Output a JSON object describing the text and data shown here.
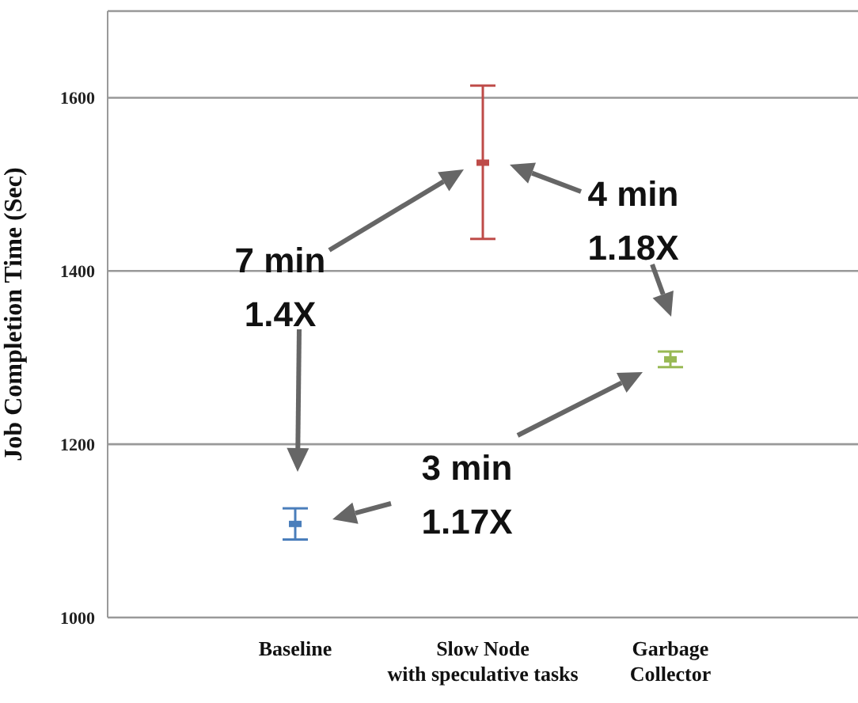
{
  "chart_data": {
    "type": "scatter",
    "ylabel": "Job Completion Time (Sec)",
    "categories": [
      "Baseline",
      "Slow Node\nwith speculative tasks",
      "Garbage\nCollector"
    ],
    "values": [
      1108,
      1525,
      1298
    ],
    "errors": [
      [
        1090,
        1126
      ],
      [
        1437,
        1614
      ],
      [
        1289,
        1307
      ]
    ],
    "colors": [
      "#4a7ebb",
      "#be4b48",
      "#98b954"
    ],
    "ylim": [
      1000,
      1700
    ],
    "yticks": [
      1000,
      1200,
      1400,
      1600
    ],
    "grid": "y",
    "marker": "square",
    "legend": false,
    "annotations": [
      "7 min\n1.4X",
      "4 min\n1.18X",
      "3 min\n1.17X"
    ]
  }
}
